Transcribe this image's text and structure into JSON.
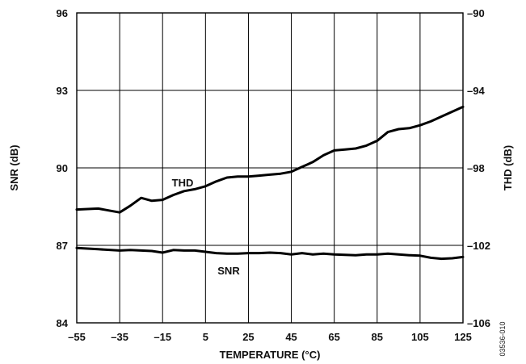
{
  "chart_data": {
    "type": "line",
    "xlabel": "TEMPERATURE (°C)",
    "ylabel_left": "SNR (dB)",
    "ylabel_right": "THD (dB)",
    "xlim": [
      -55,
      125
    ],
    "ylim_left": [
      84,
      96
    ],
    "ylim_right": [
      -106,
      -90
    ],
    "x_ticks": [
      "–55",
      "–35",
      "–15",
      "5",
      "25",
      "45",
      "65",
      "85",
      "105",
      "125"
    ],
    "y_left_ticks": [
      "84",
      "87",
      "90",
      "93",
      "96"
    ],
    "y_right_ticks": [
      "–106",
      "–102",
      "–98",
      "–94",
      "–90"
    ],
    "grid": true,
    "figure_id": "03536-010",
    "series": [
      {
        "name": "THD",
        "axis": "right",
        "x": [
          -55,
          -45,
          -40,
          -35,
          -30,
          -25,
          -20,
          -15,
          -10,
          -5,
          0,
          5,
          10,
          15,
          20,
          25,
          30,
          35,
          40,
          45,
          50,
          55,
          60,
          65,
          70,
          75,
          80,
          85,
          90,
          95,
          100,
          105,
          110,
          115,
          120,
          125
        ],
        "values": [
          -100.15,
          -100.1,
          -100.2,
          -100.3,
          -99.95,
          -99.55,
          -99.7,
          -99.65,
          -99.4,
          -99.2,
          -99.1,
          -98.95,
          -98.7,
          -98.5,
          -98.45,
          -98.45,
          -98.4,
          -98.35,
          -98.3,
          -98.2,
          -97.95,
          -97.7,
          -97.35,
          -97.1,
          -97.05,
          -97.0,
          -96.85,
          -96.6,
          -96.15,
          -96.0,
          -95.95,
          -95.8,
          -95.6,
          -95.35,
          -95.1,
          -94.85
        ]
      },
      {
        "name": "SNR",
        "axis": "left",
        "x": [
          -55,
          -45,
          -35,
          -30,
          -25,
          -20,
          -15,
          -10,
          -5,
          0,
          5,
          10,
          15,
          20,
          25,
          30,
          35,
          40,
          45,
          50,
          55,
          60,
          65,
          70,
          75,
          80,
          85,
          90,
          95,
          100,
          105,
          110,
          115,
          120,
          125
        ],
        "values": [
          86.9,
          86.85,
          86.8,
          86.82,
          86.8,
          86.78,
          86.72,
          86.82,
          86.8,
          86.8,
          86.75,
          86.7,
          86.68,
          86.68,
          86.7,
          86.7,
          86.72,
          86.7,
          86.65,
          86.7,
          86.65,
          86.68,
          86.65,
          86.63,
          86.62,
          86.65,
          86.65,
          86.68,
          86.65,
          86.62,
          86.6,
          86.52,
          86.48,
          86.5,
          86.55
        ]
      }
    ]
  }
}
